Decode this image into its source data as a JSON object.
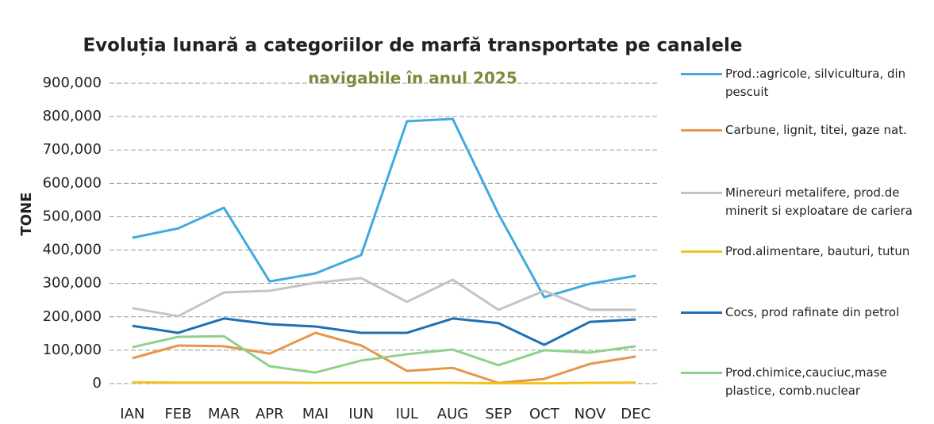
{
  "chart_data": {
    "type": "line",
    "title": "Evoluția lunară a categoriilor de marfă transportate pe canalele",
    "subtitle": "navigabile în anul 2025",
    "y_label": "TONE",
    "categories": [
      "IAN",
      "FEB",
      "MAR",
      "APR",
      "MAI",
      "IUN",
      "IUL",
      "AUG",
      "SEP",
      "OCT",
      "NOV",
      "DEC"
    ],
    "series": [
      {
        "name": "Prod.:agricole, silvicultura, din pescuit",
        "color": "#3fa9e0",
        "values": [
          437000,
          465000,
          527000,
          306000,
          330000,
          385000,
          786000,
          793000,
          508000,
          259000,
          299000,
          323000
        ]
      },
      {
        "name": "Carbune, lignit, titei, gaze nat.",
        "color": "#e8964a",
        "values": [
          76000,
          114000,
          112000,
          90000,
          152000,
          114000,
          38000,
          47000,
          2000,
          14000,
          59000,
          81000
        ]
      },
      {
        "name": "Minereuri metalifere, prod.de minerit si exploatare de cariera",
        "color": "#c4c4c4",
        "values": [
          226000,
          202000,
          273000,
          278000,
          302000,
          316000,
          245000,
          311000,
          221000,
          278000,
          221000,
          221000
        ]
      },
      {
        "name": "Prod.alimentare, bauturi, tutun",
        "color": "#f2c21b",
        "values": [
          4000,
          3000,
          3000,
          3000,
          2000,
          2000,
          2000,
          2000,
          1000,
          1000,
          2000,
          3000
        ]
      },
      {
        "name": "Cocs, prod rafinate din petrol",
        "color": "#1f6fb4",
        "values": [
          173000,
          152000,
          195000,
          178000,
          171000,
          152000,
          152000,
          195000,
          181000,
          116000,
          185000,
          192000
        ]
      },
      {
        "name": "Prod.chimice,cauciuc,mase plastice, comb.nuclear",
        "color": "#8fd18a",
        "values": [
          109000,
          140000,
          142000,
          52000,
          33000,
          69000,
          88000,
          102000,
          55000,
          100000,
          93000,
          112000
        ]
      }
    ],
    "ylim": [
      0,
      900000
    ],
    "yticks": [
      0,
      {
        "value": 100000,
        "label": "100,000"
      },
      {
        "value": 200000,
        "label": "200,000"
      },
      {
        "value": 300000,
        "label": "300,000"
      },
      {
        "value": 400000,
        "label": "400,000"
      },
      {
        "value": 500000,
        "label": "500,000"
      },
      {
        "value": 600000,
        "label": "600,000"
      },
      {
        "value": 700000,
        "label": "700,000"
      },
      {
        "value": 800000,
        "label": "800,000"
      },
      {
        "value": 900000,
        "label": "900,000"
      }
    ],
    "grid": true,
    "legend": "right"
  }
}
